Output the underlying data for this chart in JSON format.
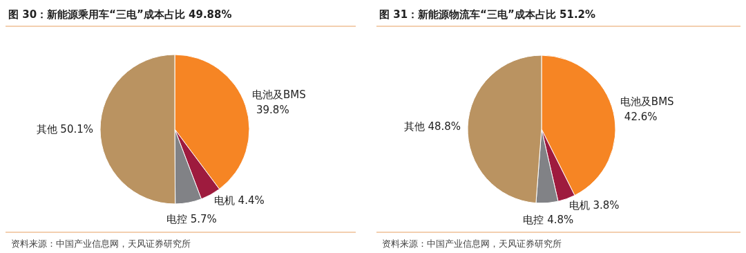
{
  "chart_data": [
    {
      "type": "pie",
      "title": "图 30：新能源乘用车“三电”成本占比 49.88%",
      "categories": [
        "电池及BMS",
        "电机",
        "电控",
        "其他"
      ],
      "values": [
        39.8,
        4.4,
        5.7,
        50.1
      ],
      "value_labels": [
        "39.8%",
        "4.4%",
        "5.7%",
        "50.1%"
      ],
      "colors": [
        "#f68524",
        "#9e1b3e",
        "#818286",
        "#ba9361"
      ],
      "annotations": [
        "资料来源：中国产业信息网，天风证券研究所"
      ]
    },
    {
      "type": "pie",
      "title": "图 31：新能源物流车“三电”成本占比 51.2%",
      "categories": [
        "电池及BMS",
        "电机",
        "电控",
        "其他"
      ],
      "values": [
        42.6,
        3.8,
        4.8,
        48.8
      ],
      "value_labels": [
        "42.6%",
        "3.8%",
        "4.8%",
        "48.8%"
      ],
      "colors": [
        "#f68524",
        "#9e1b3e",
        "#818286",
        "#ba9361"
      ],
      "annotations": [
        "资料来源：中国产业信息网，天风证券研究所"
      ]
    }
  ]
}
